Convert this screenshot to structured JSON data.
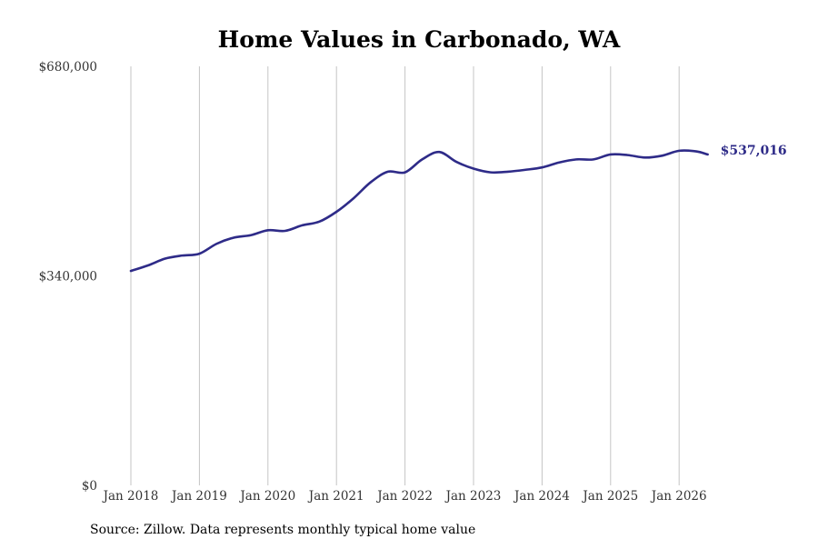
{
  "chart_data": {
    "type": "line",
    "title": "Home Values in Carbonado, WA",
    "source": "Source: Zillow. Data represents monthly typical home value",
    "y_ticks": [
      "$0",
      "$340,000",
      "$680,000"
    ],
    "ylim": [
      0,
      680000
    ],
    "x_ticks": [
      "Jan 2018",
      "Jan 2019",
      "Jan 2020",
      "Jan 2021",
      "Jan 2022",
      "Jan 2023",
      "Jan 2024",
      "Jan 2025",
      "Jan 2026"
    ],
    "grid": "vertical",
    "end_label": "$537,016",
    "series": [
      {
        "color": "#2e2b88",
        "points": [
          {
            "x": "2018-01",
            "y": 348000
          },
          {
            "x": "2018-04",
            "y": 357000
          },
          {
            "x": "2018-07",
            "y": 368000
          },
          {
            "x": "2018-10",
            "y": 373000
          },
          {
            "x": "2019-01",
            "y": 376000
          },
          {
            "x": "2019-04",
            "y": 392000
          },
          {
            "x": "2019-07",
            "y": 402000
          },
          {
            "x": "2019-10",
            "y": 406000
          },
          {
            "x": "2020-01",
            "y": 414000
          },
          {
            "x": "2020-04",
            "y": 413000
          },
          {
            "x": "2020-07",
            "y": 422000
          },
          {
            "x": "2020-10",
            "y": 428000
          },
          {
            "x": "2021-01",
            "y": 444000
          },
          {
            "x": "2021-04",
            "y": 466000
          },
          {
            "x": "2021-07",
            "y": 492000
          },
          {
            "x": "2021-10",
            "y": 509000
          },
          {
            "x": "2022-01",
            "y": 508000
          },
          {
            "x": "2022-04",
            "y": 529000
          },
          {
            "x": "2022-07",
            "y": 541000
          },
          {
            "x": "2022-10",
            "y": 525000
          },
          {
            "x": "2023-01",
            "y": 514000
          },
          {
            "x": "2023-04",
            "y": 508000
          },
          {
            "x": "2023-07",
            "y": 509000
          },
          {
            "x": "2023-10",
            "y": 512000
          },
          {
            "x": "2024-01",
            "y": 516000
          },
          {
            "x": "2024-04",
            "y": 524000
          },
          {
            "x": "2024-07",
            "y": 529000
          },
          {
            "x": "2024-10",
            "y": 529000
          },
          {
            "x": "2025-01",
            "y": 537000
          },
          {
            "x": "2025-04",
            "y": 536000
          },
          {
            "x": "2025-07",
            "y": 532000
          },
          {
            "x": "2025-10",
            "y": 535000
          },
          {
            "x": "2026-01",
            "y": 543000
          },
          {
            "x": "2026-04",
            "y": 542000
          },
          {
            "x": "2026-06",
            "y": 537016
          }
        ]
      }
    ]
  }
}
